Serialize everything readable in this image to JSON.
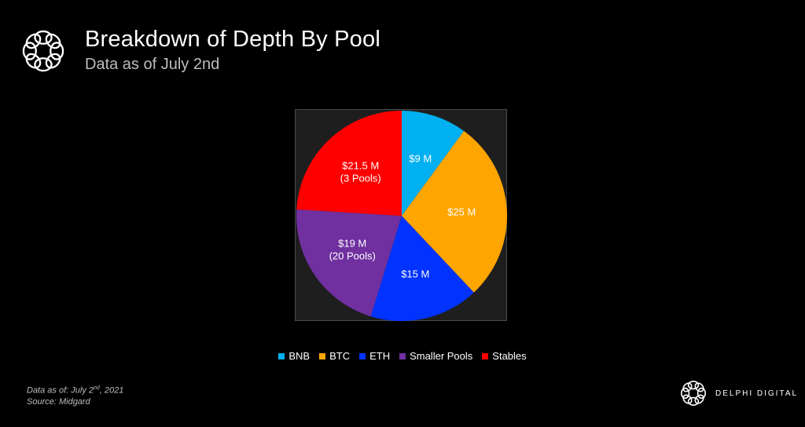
{
  "header": {
    "title": "Breakdown of Depth By Pool",
    "subtitle": "Data as of July 2nd"
  },
  "footnote": {
    "line1_prefix": "Data as of: July 2",
    "line1_sup": "nd",
    "line1_suffix": ", 2021",
    "line2": "Source: Midgard"
  },
  "brand": {
    "name": "DELPHI DIGITAL",
    "logo_icon": "delphi-digital-logo"
  },
  "chart_data": {
    "type": "pie",
    "title": "Breakdown of Depth By Pool",
    "subtitle": "Data as of July 2nd",
    "legend_placement": "bottom",
    "slices": [
      {
        "name": "BNB",
        "value": 9,
        "label": [
          "$9 M"
        ],
        "color": "#00b0f0"
      },
      {
        "name": "BTC",
        "value": 25,
        "label": [
          "$25 M"
        ],
        "color": "#ffa500"
      },
      {
        "name": "ETH",
        "value": 15,
        "label": [
          "$15 M"
        ],
        "color": "#0033ff"
      },
      {
        "name": "Smaller Pools",
        "value": 19,
        "label": [
          "$19 M",
          "(20 Pools)"
        ],
        "color": "#7030a0"
      },
      {
        "name": "Stables",
        "value": 21.5,
        "label": [
          "$21.5 M",
          "(3 Pools)"
        ],
        "color": "#ff0000"
      }
    ]
  }
}
